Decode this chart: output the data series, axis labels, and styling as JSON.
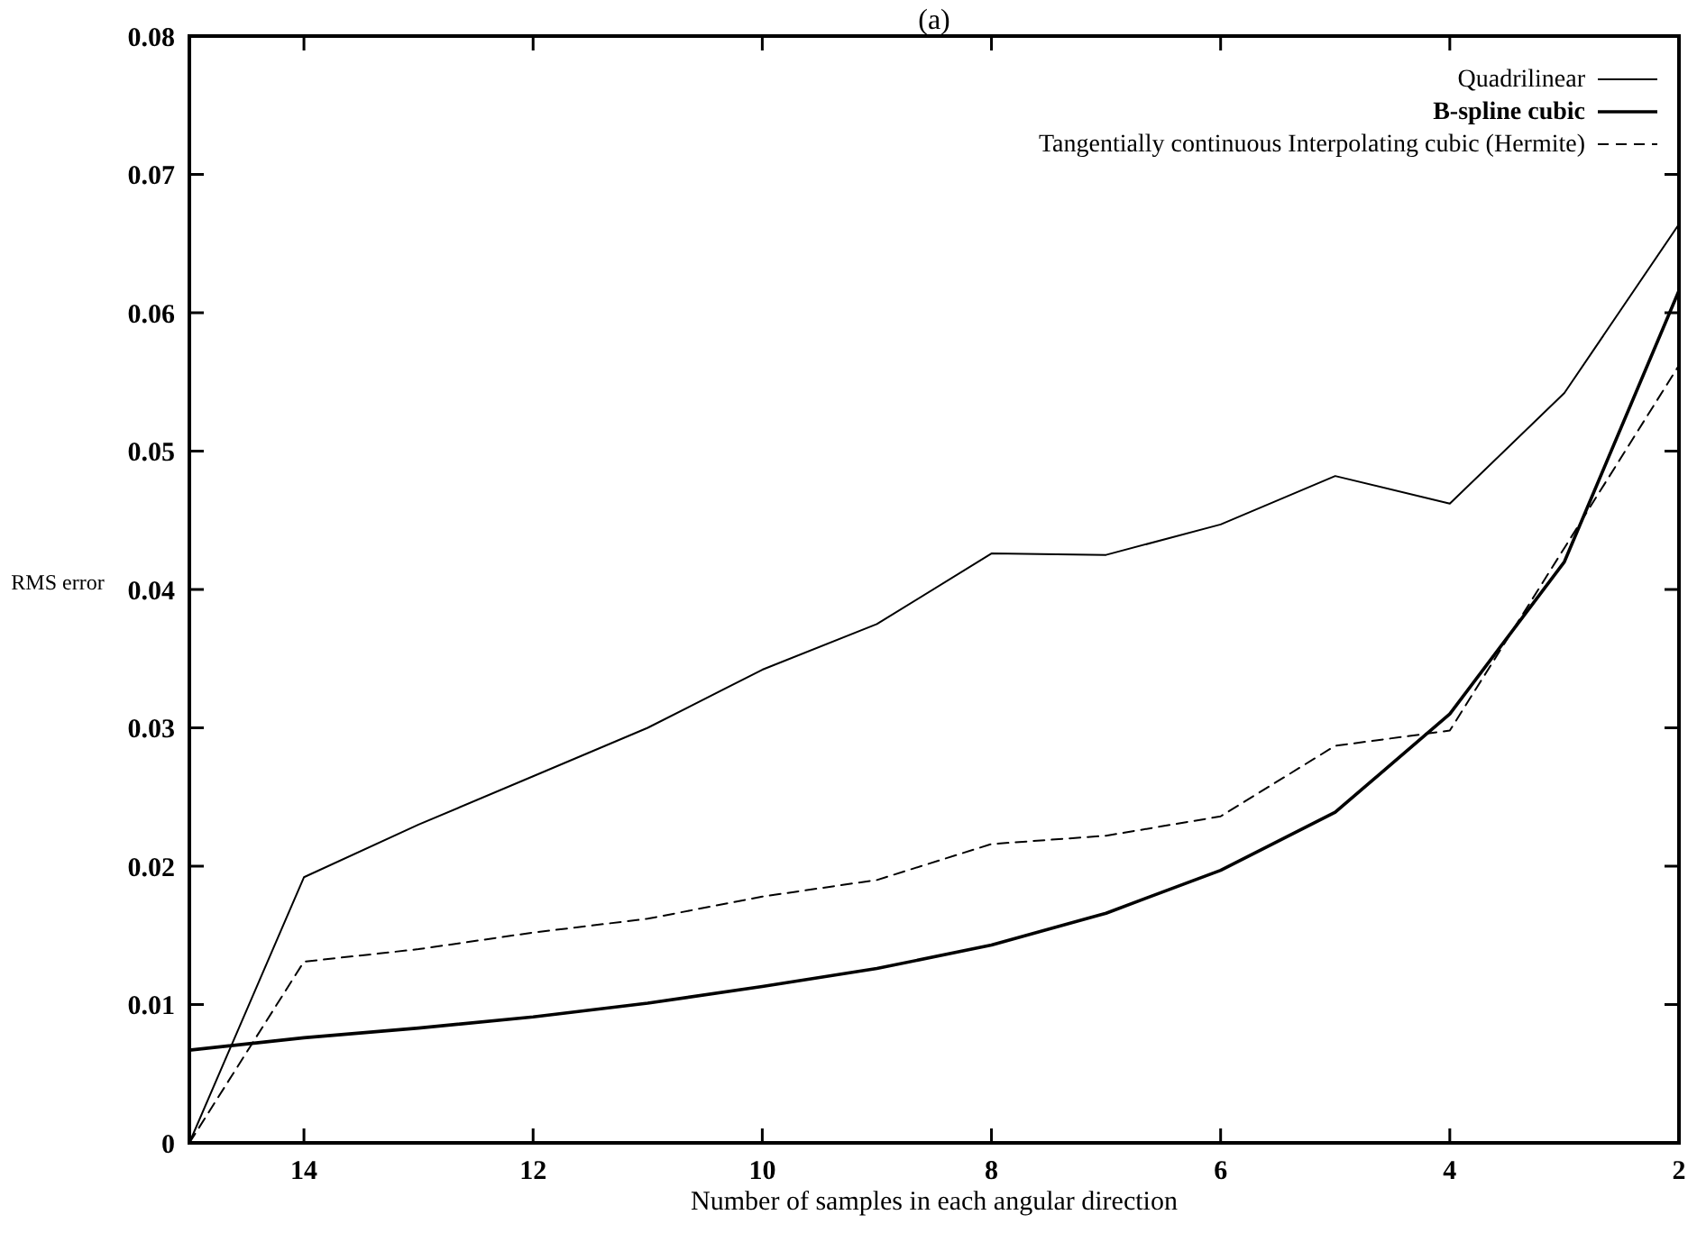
{
  "chart_data": {
    "type": "line",
    "title": "(a)",
    "xlabel": "Number of samples in each angular direction",
    "ylabel": "RMS error",
    "x": [
      15,
      14,
      13,
      12,
      11,
      10,
      9,
      8,
      7,
      6,
      5,
      4,
      3,
      2
    ],
    "xlim": [
      15,
      2
    ],
    "xticks": [
      14,
      12,
      10,
      8,
      6,
      4,
      2
    ],
    "ylim": [
      0,
      0.08
    ],
    "yticks": [
      0,
      0.01,
      0.02,
      0.03,
      0.04,
      0.05,
      0.06,
      0.07,
      0.08
    ],
    "legend": "top right",
    "grid": false,
    "series": [
      {
        "name": "Quadrilinear",
        "color": "#000000",
        "line_style": "solid",
        "values": [
          0,
          0.0192,
          0.023,
          0.0265,
          0.03,
          0.0342,
          0.0375,
          0.0426,
          0.0425,
          0.0447,
          0.0482,
          0.0462,
          0.0542,
          0.0664
        ]
      },
      {
        "name": "B-spline cubic",
        "color": "#000000",
        "line_style": "solid",
        "values": [
          0.0067,
          0.0076,
          0.0083,
          0.0091,
          0.0101,
          0.0113,
          0.0126,
          0.0143,
          0.0166,
          0.0197,
          0.0239,
          0.031,
          0.042,
          0.0616
        ]
      },
      {
        "name": "Tangentially continuous Interpolating cubic (Hermite)",
        "color": "#000000",
        "line_style": "dashed",
        "values": [
          0,
          0.0131,
          0.014,
          0.0152,
          0.0162,
          0.0178,
          0.019,
          0.0216,
          0.0222,
          0.0236,
          0.0287,
          0.0298,
          0.043,
          0.0562
        ]
      }
    ]
  }
}
